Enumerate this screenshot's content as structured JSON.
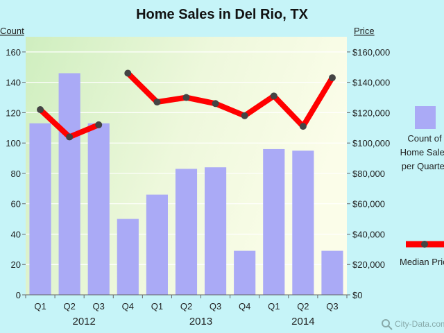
{
  "chart_data": {
    "type": "bar+line",
    "title": "Home Sales in Del Rio, TX",
    "left_axis_label": "Count",
    "right_axis_label": "Price",
    "left_ylim": [
      0,
      170
    ],
    "left_ticks": [
      0,
      20,
      40,
      60,
      80,
      100,
      120,
      140,
      160
    ],
    "right_ylim": [
      0,
      170000
    ],
    "right_ticks": [
      0,
      20000,
      40000,
      60000,
      80000,
      100000,
      120000,
      140000,
      160000
    ],
    "right_tick_labels": [
      "$0",
      "$20,000",
      "$40,000",
      "$60,000",
      "$80,000",
      "$100,000",
      "$120,000",
      "$140,000",
      "$160,000"
    ],
    "categories": [
      "Q1",
      "Q2",
      "Q3",
      "Q4",
      "Q1",
      "Q2",
      "Q3",
      "Q4",
      "Q1",
      "Q2",
      "Q3"
    ],
    "years": [
      {
        "label": "2012",
        "start": 0,
        "end": 3
      },
      {
        "label": "2013",
        "start": 4,
        "end": 7
      },
      {
        "label": "2014",
        "start": 8,
        "end": 10
      }
    ],
    "series": [
      {
        "name": "Count of Home Sales per Quarter",
        "type": "bar",
        "axis": "left",
        "color": "#aaaaf6",
        "values": [
          113,
          146,
          113,
          50,
          66,
          83,
          84,
          29,
          96,
          95,
          29
        ]
      },
      {
        "name": "Median Price",
        "type": "line",
        "axis": "right",
        "color": "#ff0000",
        "marker_color": "#444444",
        "segments": [
          [
            0,
            2
          ],
          [
            3,
            10
          ]
        ],
        "values": [
          122000,
          104000,
          112000,
          146000,
          127000,
          130000,
          126000,
          118000,
          131000,
          111000,
          143000
        ]
      }
    ],
    "legend": {
      "placement": "right",
      "bar_label_lines": [
        "Count of",
        "Home Sales",
        "per Quarter"
      ],
      "line_label": "Median Price"
    },
    "watermark": "City-Data.com",
    "grid": true
  }
}
